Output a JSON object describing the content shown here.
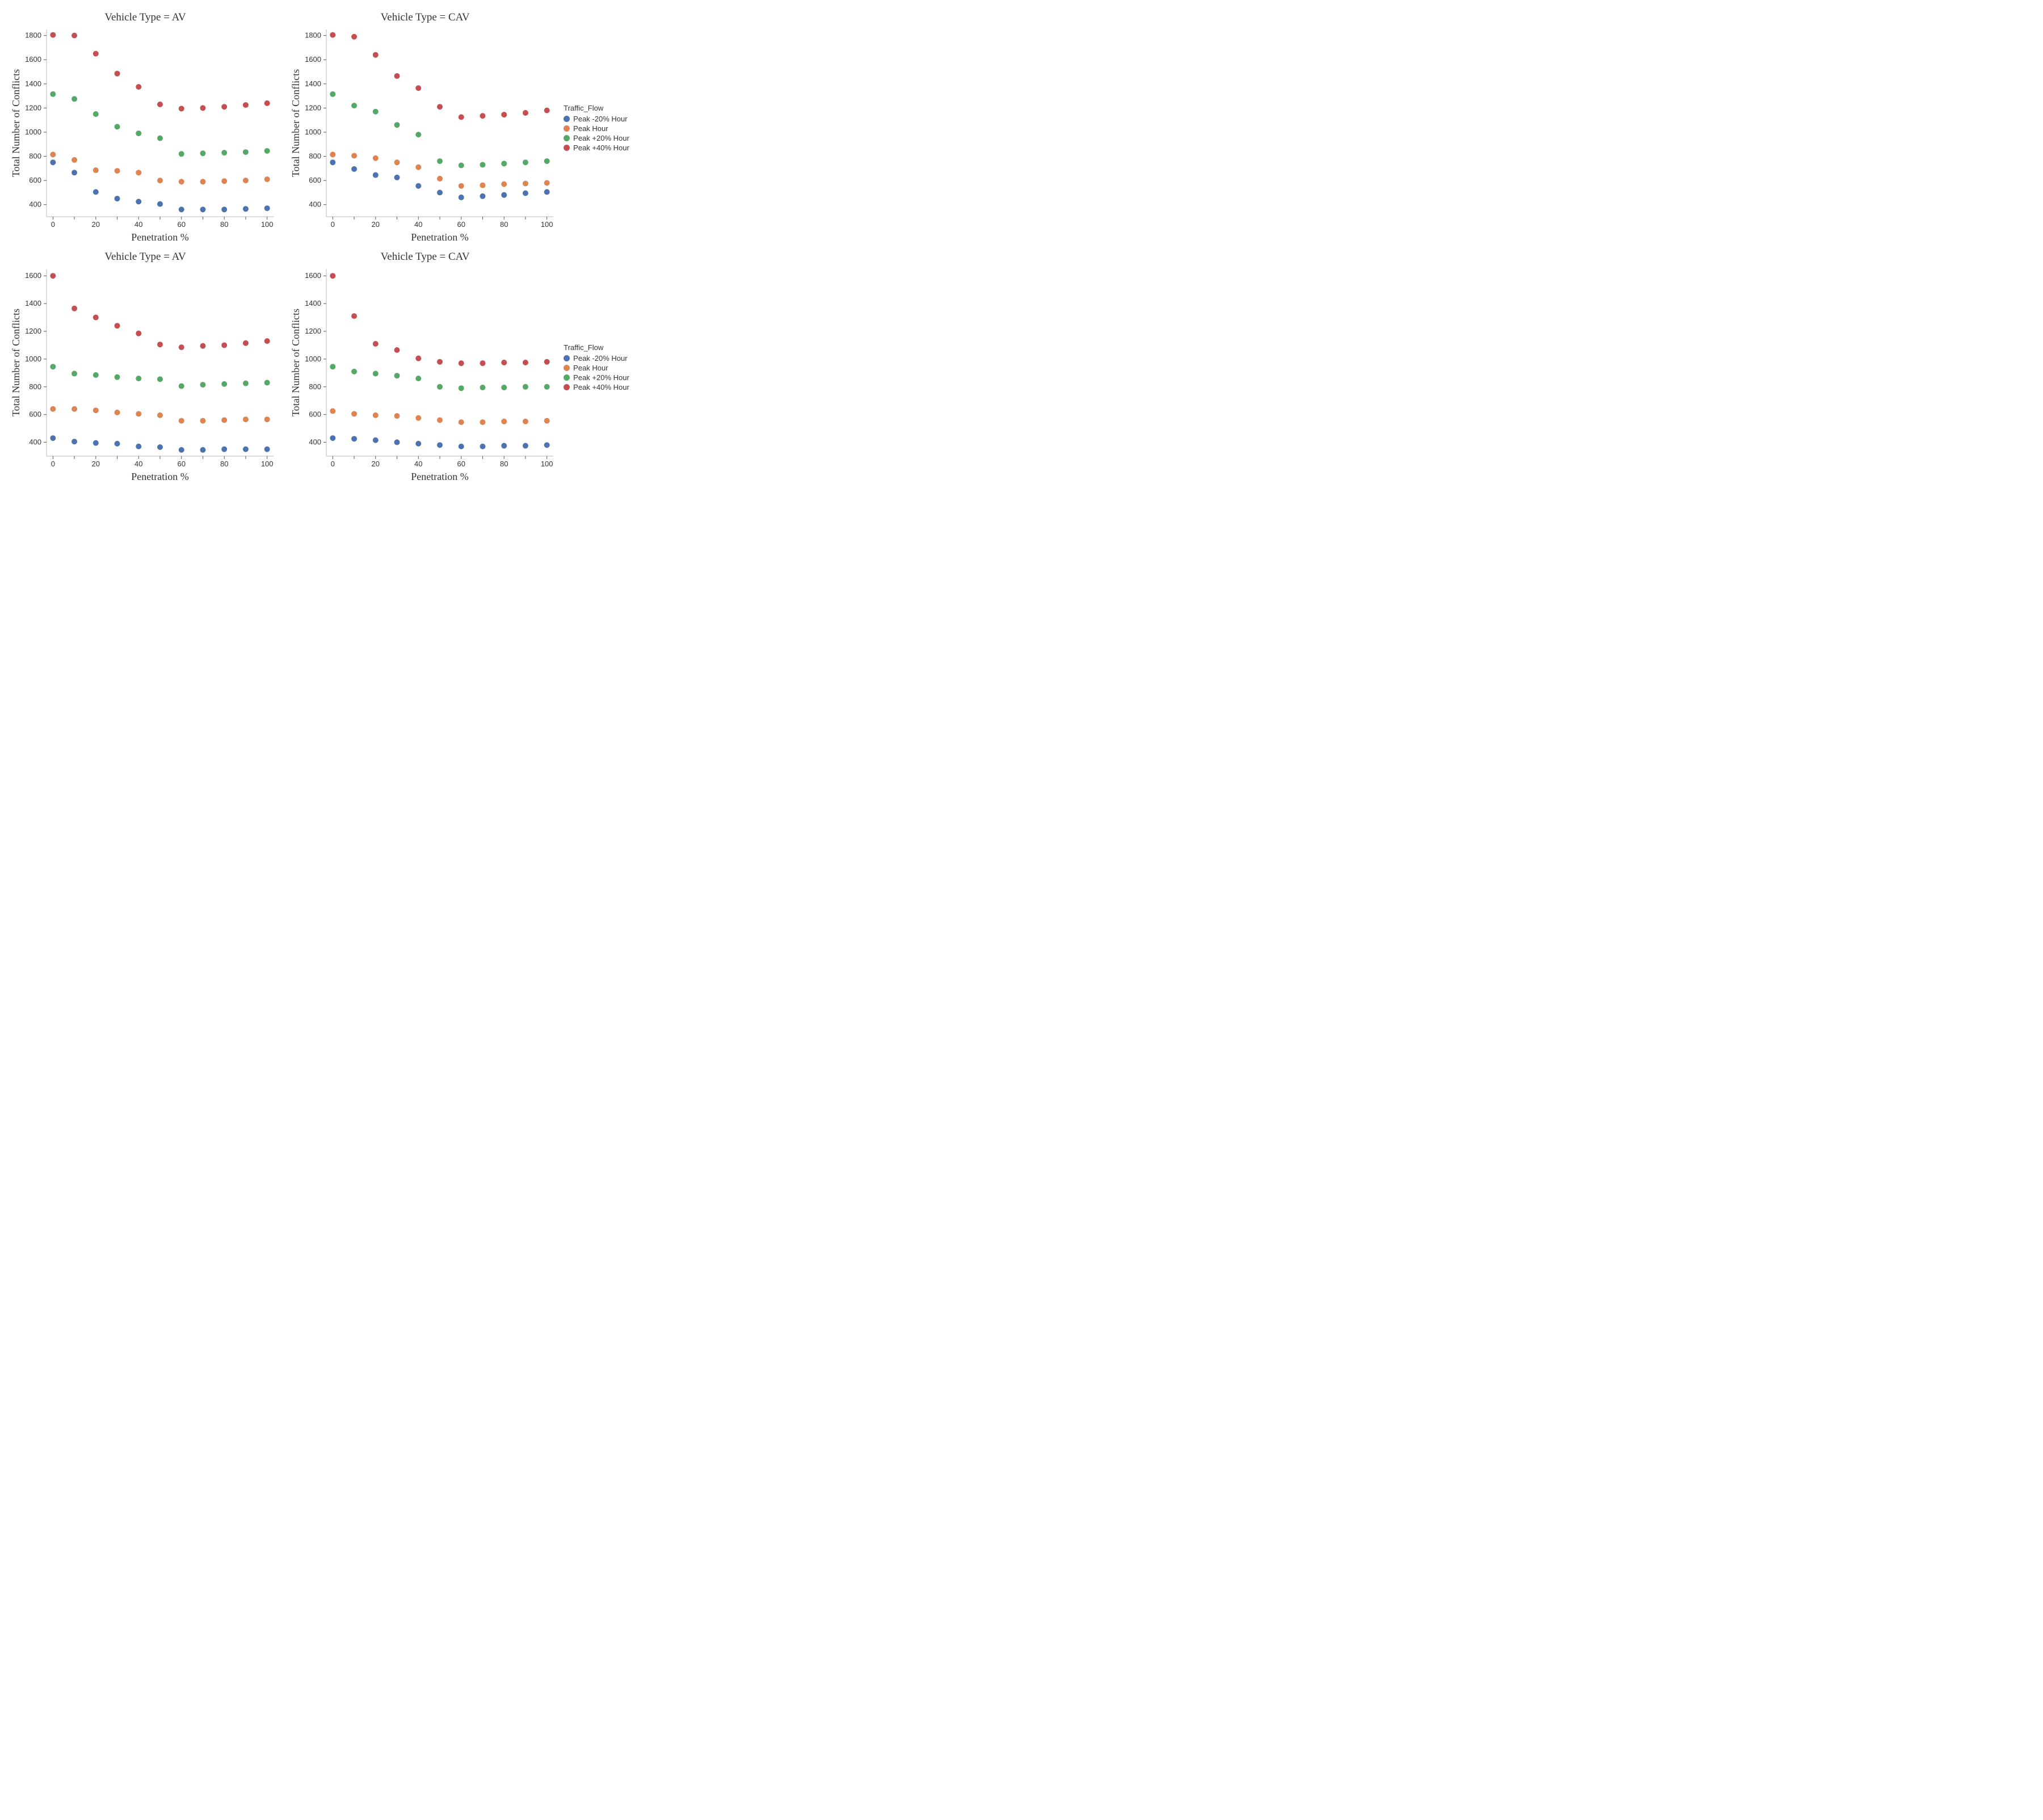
{
  "colors": {
    "peak_m20": "#4c72b0",
    "peak": "#dd8452",
    "peak_p20": "#55a868",
    "peak_p40": "#c44e52",
    "axis": "#555555",
    "spine": "#bbbbbb",
    "text": "#333333",
    "bg": "#ffffff"
  },
  "legend": {
    "title": "Traffic_Flow",
    "items": [
      {
        "label": "Peak -20% Hour",
        "color_key": "peak_m20"
      },
      {
        "label": "Peak Hour",
        "color_key": "peak"
      },
      {
        "label": "Peak +20% Hour",
        "color_key": "peak_p20"
      },
      {
        "label": "Peak +40% Hour",
        "color_key": "peak_p40"
      }
    ]
  },
  "shared": {
    "marker_radius": 5,
    "xlabel": "Penetration %",
    "ylabel": "Total Number of Conflicts",
    "x_values": [
      0,
      10,
      20,
      30,
      40,
      50,
      60,
      70,
      80,
      90,
      100
    ],
    "xtick_step": 20,
    "title_fontsize": 19,
    "label_fontsize": 18,
    "tick_fontsize": 13
  },
  "panels": [
    {
      "id": "top-left",
      "title": "Vehicle Type = AV",
      "ylim": [
        300,
        1850
      ],
      "ytick_step": 200,
      "ytick_start": 400,
      "series": {
        "peak_m20": [
          750,
          665,
          505,
          450,
          425,
          405,
          360,
          360,
          360,
          365,
          370
        ],
        "peak": [
          815,
          770,
          685,
          680,
          665,
          600,
          590,
          590,
          595,
          600,
          610
        ],
        "peak_p20": [
          1315,
          1275,
          1150,
          1045,
          990,
          950,
          820,
          825,
          830,
          835,
          845
        ],
        "peak_p40": [
          1805,
          1800,
          1650,
          1485,
          1375,
          1230,
          1195,
          1200,
          1210,
          1225,
          1240
        ]
      }
    },
    {
      "id": "top-right",
      "title": "Vehicle Type = CAV",
      "ylim": [
        300,
        1850
      ],
      "ytick_step": 200,
      "ytick_start": 400,
      "series": {
        "peak_m20": [
          750,
          695,
          645,
          625,
          555,
          500,
          460,
          470,
          480,
          495,
          505
        ],
        "peak": [
          815,
          805,
          785,
          750,
          710,
          615,
          555,
          560,
          570,
          575,
          580
        ],
        "peak_p20": [
          1315,
          1220,
          1170,
          1060,
          980,
          760,
          725,
          730,
          740,
          750,
          760
        ],
        "peak_p40": [
          1805,
          1790,
          1640,
          1465,
          1365,
          1210,
          1125,
          1135,
          1145,
          1160,
          1180
        ]
      }
    },
    {
      "id": "bottom-left",
      "title": "Vehicle Type = AV",
      "ylim": [
        300,
        1650
      ],
      "ytick_step": 200,
      "ytick_start": 400,
      "series": {
        "peak_m20": [
          430,
          405,
          395,
          390,
          370,
          365,
          345,
          345,
          350,
          350,
          350
        ],
        "peak": [
          640,
          640,
          630,
          615,
          605,
          595,
          555,
          555,
          560,
          565,
          565
        ],
        "peak_p20": [
          945,
          895,
          885,
          870,
          860,
          855,
          805,
          815,
          820,
          825,
          830
        ],
        "peak_p40": [
          1600,
          1365,
          1300,
          1240,
          1185,
          1105,
          1085,
          1095,
          1100,
          1115,
          1130
        ]
      }
    },
    {
      "id": "bottom-right",
      "title": "Vehicle Type = CAV",
      "ylim": [
        300,
        1650
      ],
      "ytick_step": 200,
      "ytick_start": 400,
      "series": {
        "peak_m20": [
          430,
          425,
          415,
          400,
          390,
          380,
          370,
          370,
          375,
          375,
          380
        ],
        "peak": [
          625,
          605,
          595,
          590,
          575,
          560,
          545,
          545,
          550,
          550,
          555
        ],
        "peak_p20": [
          945,
          910,
          895,
          880,
          860,
          800,
          790,
          795,
          795,
          800,
          800
        ],
        "peak_p40": [
          1600,
          1310,
          1110,
          1065,
          1005,
          980,
          970,
          970,
          975,
          975,
          980
        ]
      }
    }
  ]
}
